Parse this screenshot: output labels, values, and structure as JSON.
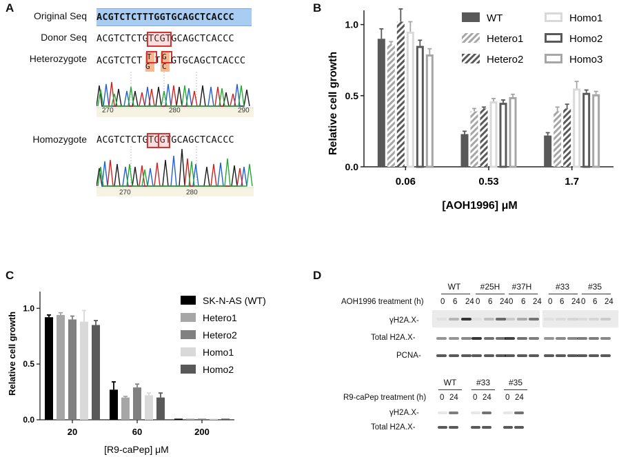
{
  "panels": {
    "A": "A",
    "B": "B",
    "C": "C",
    "D": "D"
  },
  "panelA": {
    "labels": {
      "original": "Original Seq",
      "donor": "Donor Seq",
      "hetero": "Heterozygote",
      "homo": "Homozygote"
    },
    "seq_original": "ACGTCTCTTTGGTGCAGCTCACCC",
    "seq_donor": "ACGTCTCTGTCGTGCAGCTCACCC",
    "seq_hetero_pre": "ACGTCTCT",
    "seq_hetero_post": "GTGCAGCTCACCC",
    "seq_hetero_top1": "T",
    "seq_hetero_bot1": "G",
    "seq_hetero_mid": "T",
    "seq_hetero_top2": "G",
    "seq_hetero_bot2": "C",
    "seq_homo": "ACGTCTCTGTCGTGCAGCTCACCC",
    "hetero_ticks": [
      "270",
      "280",
      "290"
    ],
    "homo_ticks": [
      "270",
      "280"
    ]
  },
  "chart_data": [
    {
      "panel": "B",
      "type": "bar",
      "categories": [
        "0.06",
        "0.53",
        "1.7"
      ],
      "xlabel": "[AOH1996] μM",
      "ylabel": "Relative cell growth",
      "ylim": [
        0,
        1.1
      ],
      "yticks": [
        "0.0",
        "0.5",
        "1.0"
      ],
      "legend_position": "top-right",
      "series": [
        {
          "name": "WT",
          "values": [
            0.9,
            0.23,
            0.22
          ],
          "errors": [
            0.07,
            0.02,
            0.02
          ],
          "style": "solid-dark",
          "color": "#595959"
        },
        {
          "name": "Hetero1",
          "values": [
            0.86,
            0.39,
            0.39
          ],
          "errors": [
            0.02,
            0.02,
            0.03
          ],
          "style": "hatch-light",
          "color": "#a6a6a6"
        },
        {
          "name": "Hetero2",
          "values": [
            1.02,
            0.41,
            0.41
          ],
          "errors": [
            0.09,
            0.01,
            0.03
          ],
          "style": "hatch-dark",
          "color": "#595959"
        },
        {
          "name": "Homo1",
          "values": [
            0.95,
            0.46,
            0.55
          ],
          "errors": [
            0.07,
            0.02,
            0.05
          ],
          "style": "outline-light",
          "color": "#d9d9d9"
        },
        {
          "name": "Homo2",
          "values": [
            0.85,
            0.45,
            0.52
          ],
          "errors": [
            0.04,
            0.02,
            0.02
          ],
          "style": "outline-dark",
          "color": "#595959"
        },
        {
          "name": "Homo3",
          "values": [
            0.79,
            0.49,
            0.51
          ],
          "errors": [
            0.04,
            0.02,
            0.02
          ],
          "style": "outline-mid",
          "color": "#a6a6a6"
        }
      ]
    },
    {
      "panel": "C",
      "type": "bar",
      "categories": [
        "20",
        "60",
        "200"
      ],
      "xlabel": "[R9-caPep] μM",
      "ylabel": "Relative cell growth",
      "ylim": [
        0,
        1.15
      ],
      "yticks": [
        "0.0",
        "0.5",
        "1.0"
      ],
      "legend_position": "right",
      "series": [
        {
          "name": "SK-N-AS (WT)",
          "values": [
            0.92,
            0.27,
            0.01
          ],
          "errors": [
            0.02,
            0.07,
            0.0
          ],
          "color": "#000000"
        },
        {
          "name": "Hetero1",
          "values": [
            0.94,
            0.2,
            0.01
          ],
          "errors": [
            0.02,
            0.01,
            0.0
          ],
          "color": "#a6a6a6"
        },
        {
          "name": "Hetero2",
          "values": [
            0.9,
            0.29,
            0.01
          ],
          "errors": [
            0.03,
            0.03,
            0.0
          ],
          "color": "#808080"
        },
        {
          "name": "Homo1",
          "values": [
            0.88,
            0.22,
            0.01
          ],
          "errors": [
            0.1,
            0.02,
            0.0
          ],
          "color": "#d9d9d9"
        },
        {
          "name": "Homo2",
          "values": [
            0.85,
            0.2,
            0.01
          ],
          "errors": [
            0.04,
            0.04,
            0.0
          ],
          "color": "#595959"
        }
      ]
    }
  ],
  "panelD": {
    "top_groups": [
      "WT",
      "#25H",
      "#37H",
      "#33",
      "#35"
    ],
    "top_treatment_label": "AOH1996 treatment (h)",
    "top_times": [
      "0",
      "6",
      "24"
    ],
    "top_rows": [
      "γH2A.X-",
      "Total H2A.X-",
      "PCNA-"
    ],
    "bottom_groups": [
      "WT",
      "#33",
      "#35"
    ],
    "bottom_treatment_label": "R9-caPep treatment (h)",
    "bottom_times": [
      "0",
      "24"
    ],
    "bottom_rows": [
      "γH2A.X-",
      "Total H2A.X-"
    ]
  }
}
